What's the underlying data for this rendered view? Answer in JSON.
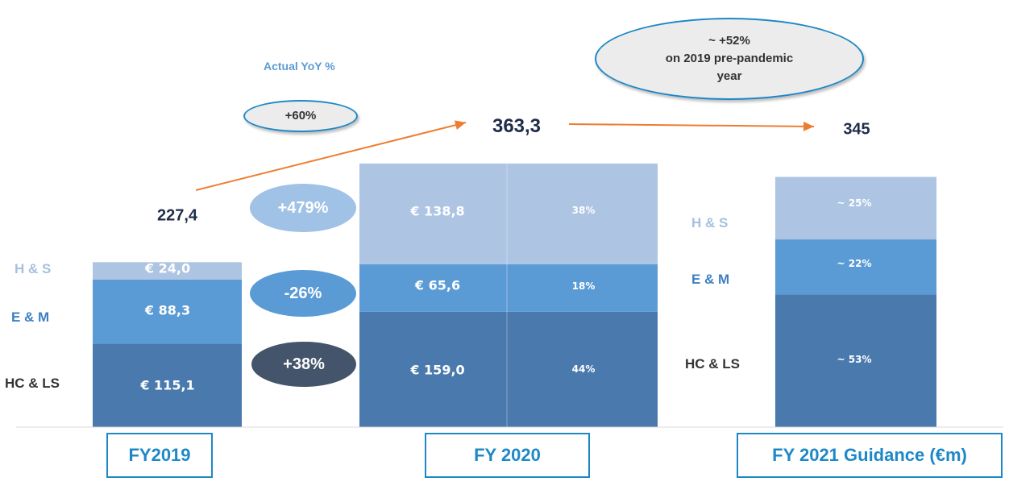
{
  "chart_data": {
    "type": "bar",
    "stacked": true,
    "categories": [
      "FY2019",
      "FY 2020",
      "FY 2021 Guidance (€m)"
    ],
    "series": [
      {
        "name": "HC & LS",
        "values": [
          115.1,
          159.0,
          182.9
        ],
        "labels": [
          "€ 115,1",
          "€ 159,0",
          ""
        ],
        "shares": [
          "",
          "44%",
          "~ 53%"
        ],
        "color": "#4a7aad"
      },
      {
        "name": "E & M",
        "values": [
          88.3,
          65.6,
          75.9
        ],
        "labels": [
          "€ 88,3",
          "€ 65,6",
          ""
        ],
        "shares": [
          "",
          "18%",
          "~ 22%"
        ],
        "color": "#5b9bd5"
      },
      {
        "name": "H & S",
        "values": [
          24.0,
          138.8,
          86.2
        ],
        "labels": [
          "€ 24,0",
          "€ 138,8",
          ""
        ],
        "shares": [
          "",
          "38%",
          "~ 25%"
        ],
        "color": "#adc4e3"
      }
    ],
    "totals": [
      "227,4",
      "363,3",
      "345"
    ],
    "total_values": [
      227.4,
      363.3,
      345
    ],
    "ylim": [
      0,
      420
    ],
    "yoy_label": "Actual YoY %",
    "yoy_total": "+60%",
    "yoy_segments": [
      {
        "series": "H & S",
        "value": "+479%",
        "color": "#9fc2e6"
      },
      {
        "series": "E & M",
        "value": "-26%",
        "color": "#5b9bd5"
      },
      {
        "series": "HC & LS",
        "value": "+38%",
        "color": "#44546a"
      }
    ],
    "note": {
      "line1": "~ +52%",
      "line2": "on 2019 pre-pandemic",
      "line3": "year"
    },
    "colors": {
      "arrow": "#ed7d31",
      "box_border": "#1e88c7",
      "label_dark": "#333333",
      "label_em": "#3d7fc4",
      "label_hs": "#a6c0e0"
    }
  }
}
